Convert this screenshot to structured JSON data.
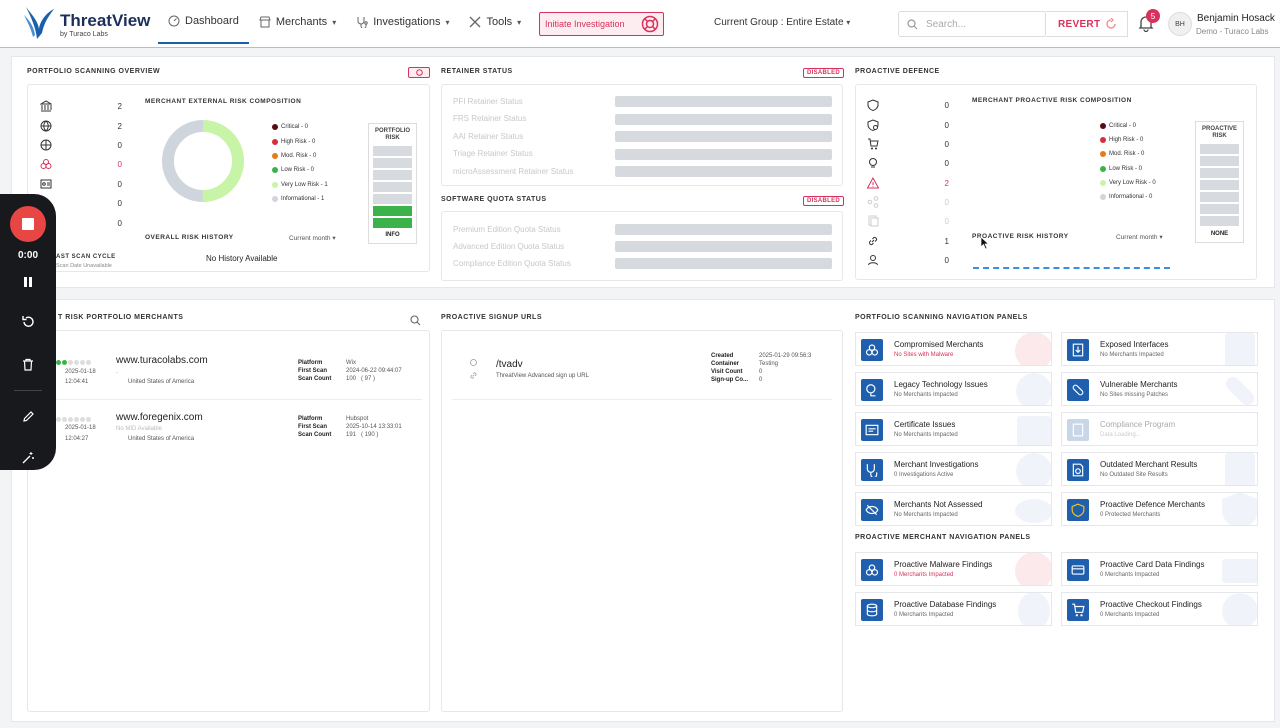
{
  "header": {
    "brand": "ThreatView",
    "brand_sub": "by Turaco Labs",
    "nav": [
      {
        "label": "Dashboard",
        "icon": "dashboard-icon"
      },
      {
        "label": "Merchants",
        "icon": "store-icon"
      },
      {
        "label": "Investigations",
        "icon": "stethoscope-icon"
      },
      {
        "label": "Tools",
        "icon": "tools-icon"
      }
    ],
    "initiate_label": "Initiate Investigation",
    "group_label": "Current Group : Entire Estate",
    "search_placeholder": "Search...",
    "revert_label": "REVERT",
    "notification_count": "5",
    "avatar_initials": "BH",
    "user_name": "Benjamin Hosack",
    "user_org": "Demo - Turaco Labs"
  },
  "portfolio_overview": {
    "title": "PORTFOLIO SCANNING OVERVIEW",
    "stats": [
      "2",
      "2",
      "0",
      "0",
      "0",
      "0",
      "0"
    ],
    "composition_title": "MERCHANT EXTERNAL RISK COMPOSITION",
    "legend": [
      {
        "label": "Critical - 0",
        "color": "#5a0c14"
      },
      {
        "label": "High Risk - 0",
        "color": "#d62f3a"
      },
      {
        "label": "Mod. Risk - 0",
        "color": "#e87a1e"
      },
      {
        "label": "Low Risk - 0",
        "color": "#3cb34a"
      },
      {
        "label": "Very Low Risk - 1",
        "color": "#c8f4a8"
      },
      {
        "label": "Informational - 1",
        "color": "#cfd5dc"
      }
    ],
    "donut": {
      "very_low": 1,
      "informational": 1
    },
    "riskbox_header": "PORTFOLIO RISK",
    "riskbox_footer": "INFO",
    "history_title": "OVERALL RISK HISTORY",
    "history_period": "Current month",
    "history_empty": "No History Available",
    "last_scan_title": "AST SCAN CYCLE",
    "last_scan_sub": "Scan Date Unavailable"
  },
  "retainer": {
    "title": "RETAINER STATUS",
    "badge": "DISABLED",
    "items": [
      "PFI Retainer Status",
      "FRS Retainer Status",
      "AAI Retainer Status",
      "Triage Retainer Status",
      "microAssessment Retainer Status"
    ]
  },
  "quota": {
    "title": "SOFTWARE QUOTA STATUS",
    "badge": "DISABLED",
    "items": [
      "Premium Edition Quota Status",
      "Advanced Edition Quota Status",
      "Compliance Edition Quota Status"
    ]
  },
  "proactive": {
    "title": "PROACTIVE DEFENCE",
    "stats": [
      "0",
      "0",
      "0",
      "0",
      "2",
      "0",
      "0",
      "1",
      "0"
    ],
    "composition_title": "MERCHANT PROACTIVE RISK COMPOSITION",
    "legend": [
      {
        "label": "Critical - 0",
        "color": "#5a0c14"
      },
      {
        "label": "High Risk - 0",
        "color": "#d62f3a"
      },
      {
        "label": "Mod. Risk - 0",
        "color": "#e87a1e"
      },
      {
        "label": "Low Risk - 0",
        "color": "#3cb34a"
      },
      {
        "label": "Very Low Risk - 0",
        "color": "#c8f4a8"
      },
      {
        "label": "Informational - 0",
        "color": "#cfd5dc"
      }
    ],
    "riskbox_header": "PROACTIVE RISK",
    "riskbox_footer": "NONE",
    "history_title": "PROACTIVE RISK HISTORY",
    "history_period": "Current month"
  },
  "merchants": {
    "title": "T RISK PORTFOLIO MERCHANTS",
    "labels": {
      "platform": "Platform",
      "first_scan": "First Scan",
      "scan_count": "Scan Count"
    },
    "rows": [
      {
        "site": "www.turacolabs.com",
        "sub": "-",
        "date": "2025-01-18",
        "time": "12:04:41",
        "country": "United States of America",
        "platform": "Wix",
        "first_scan": "2024-06-22 09:44:07",
        "scan_count": "100",
        "scan_count_paren": "( 97 )"
      },
      {
        "site": "www.foregenix.com",
        "sub": "No MID Available",
        "date": "2025-01-18",
        "time": "12:04:27",
        "country": "United States of America",
        "platform": "Hubspot",
        "first_scan": "2025-10-14 13:33:01",
        "scan_count": "191",
        "scan_count_paren": "( 190 )"
      }
    ]
  },
  "signup": {
    "title": "PROACTIVE SIGNUP URLS",
    "path": "/tvadv",
    "desc": "ThreatView Advanced sign up URL",
    "labels": {
      "created": "Created",
      "container": "Container",
      "visit": "Visit Count",
      "signup": "Sign-up Co..."
    },
    "values": {
      "created": "2025-01-29 09:56:3",
      "container": "Testing",
      "visit": "0",
      "signup": "0"
    }
  },
  "nav_panels": {
    "title": "PORTFOLIO SCANNING NAVIGATION PANELS",
    "items": [
      {
        "title": "Compromised Merchants",
        "sub": "No Sites with Malware",
        "red": true
      },
      {
        "title": "Exposed Interfaces",
        "sub": "No Merchants Impacted"
      },
      {
        "title": "Legacy Technology Issues",
        "sub": "No Merchants Impacted"
      },
      {
        "title": "Vulnerable Merchants",
        "sub": "No Sites missing Patches"
      },
      {
        "title": "Certificate Issues",
        "sub": "No Merchants Impacted"
      },
      {
        "title": "Compliance Program",
        "sub": "Data Loading...",
        "dim": true
      },
      {
        "title": "Merchant Investigations",
        "sub": "0 Investigations Active"
      },
      {
        "title": "Outdated Merchant Results",
        "sub": "No Outdated Site Results"
      },
      {
        "title": "Merchants Not Assessed",
        "sub": "No Merchants Impacted"
      },
      {
        "title": "Proactive Defence Merchants",
        "sub": "0 Protected Merchants"
      }
    ]
  },
  "proactive_panels": {
    "title": "PROACTIVE MERCHANT NAVIGATION PANELS",
    "items": [
      {
        "title": "Proactive Malware Findings",
        "sub": "0 Merchants Impacted",
        "red": true
      },
      {
        "title": "Proactive Card Data Findings",
        "sub": "0 Merchants Impacted"
      },
      {
        "title": "Proactive Database Findings",
        "sub": "0 Merchants Impacted"
      },
      {
        "title": "Proactive Checkout Findings",
        "sub": "0 Merchants Impacted"
      }
    ]
  },
  "recorder": {
    "time": "0:00"
  }
}
